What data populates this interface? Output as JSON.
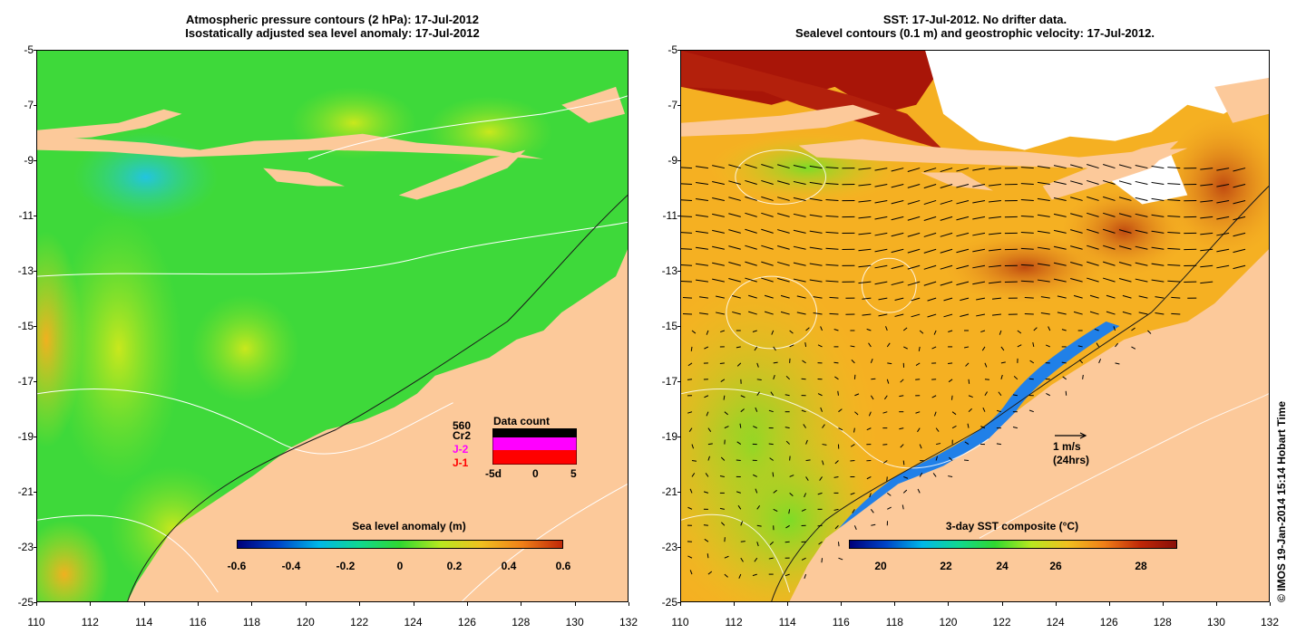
{
  "left_panel": {
    "title_line1": "Atmospheric pressure contours (2 hPa): 17-Jul-2012",
    "title_line2": "Isostatically adjusted sea level anomaly: 17-Jul-2012",
    "colorbar_title": "Sea level anomaly (m)",
    "colorbar_labels": [
      "-0.6",
      "-0.4",
      "-0.2",
      "0",
      "0.2",
      "0.4",
      "0.6"
    ],
    "data_count": {
      "title": "Data count",
      "max_label": "560",
      "series_labels": [
        "Cr2",
        "J-2",
        "J-1"
      ],
      "series_colors": [
        "#000000",
        "#ff00ff",
        "#ff0000"
      ],
      "x_labels": [
        "-5d",
        "0",
        "5"
      ]
    }
  },
  "right_panel": {
    "title_line1": "SST: 17-Jul-2012. No drifter data.",
    "title_line2": "Sealevel contours (0.1 m) and geostrophic velocity: 17-Jul-2012.",
    "colorbar_title": "3-day SST composite (°C)",
    "colorbar_labels": [
      "20",
      "22",
      "24",
      "26",
      "28"
    ],
    "velocity_scale_label": "1 m/s",
    "velocity_scale_sub": "(24hrs)"
  },
  "axes": {
    "y_labels": [
      "-5",
      "-7",
      "-9",
      "-11",
      "-13",
      "-15",
      "-17",
      "-19",
      "-21",
      "-23",
      "-25"
    ],
    "x_labels": [
      "110",
      "112",
      "114",
      "116",
      "118",
      "120",
      "122",
      "124",
      "126",
      "128",
      "130",
      "132"
    ]
  },
  "credit": "© IMOS 19-Jan-2014 15:14 Hobart Time",
  "colors": {
    "land": "#fcc99a",
    "ocean_green": "#3ed93a",
    "sst_orange": "#f5a623",
    "sst_hot": "#a81508"
  }
}
